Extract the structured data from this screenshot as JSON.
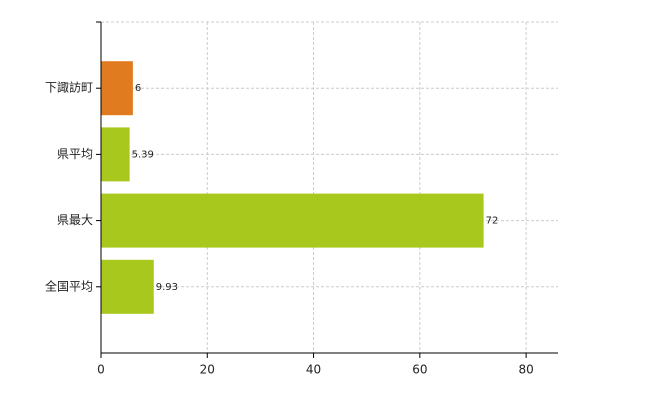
{
  "chart_data": {
    "type": "bar",
    "orientation": "horizontal",
    "categories": [
      "下諏訪町",
      "県平均",
      "県最大",
      "全国平均"
    ],
    "values": [
      6,
      5.39,
      72,
      9.93
    ],
    "colors": [
      "#e07b20",
      "#a8c81e",
      "#a8c81e",
      "#a8c81e"
    ],
    "xlim": [
      0,
      86
    ],
    "xticks": [
      0,
      20,
      40,
      60,
      80
    ],
    "grid": true
  }
}
